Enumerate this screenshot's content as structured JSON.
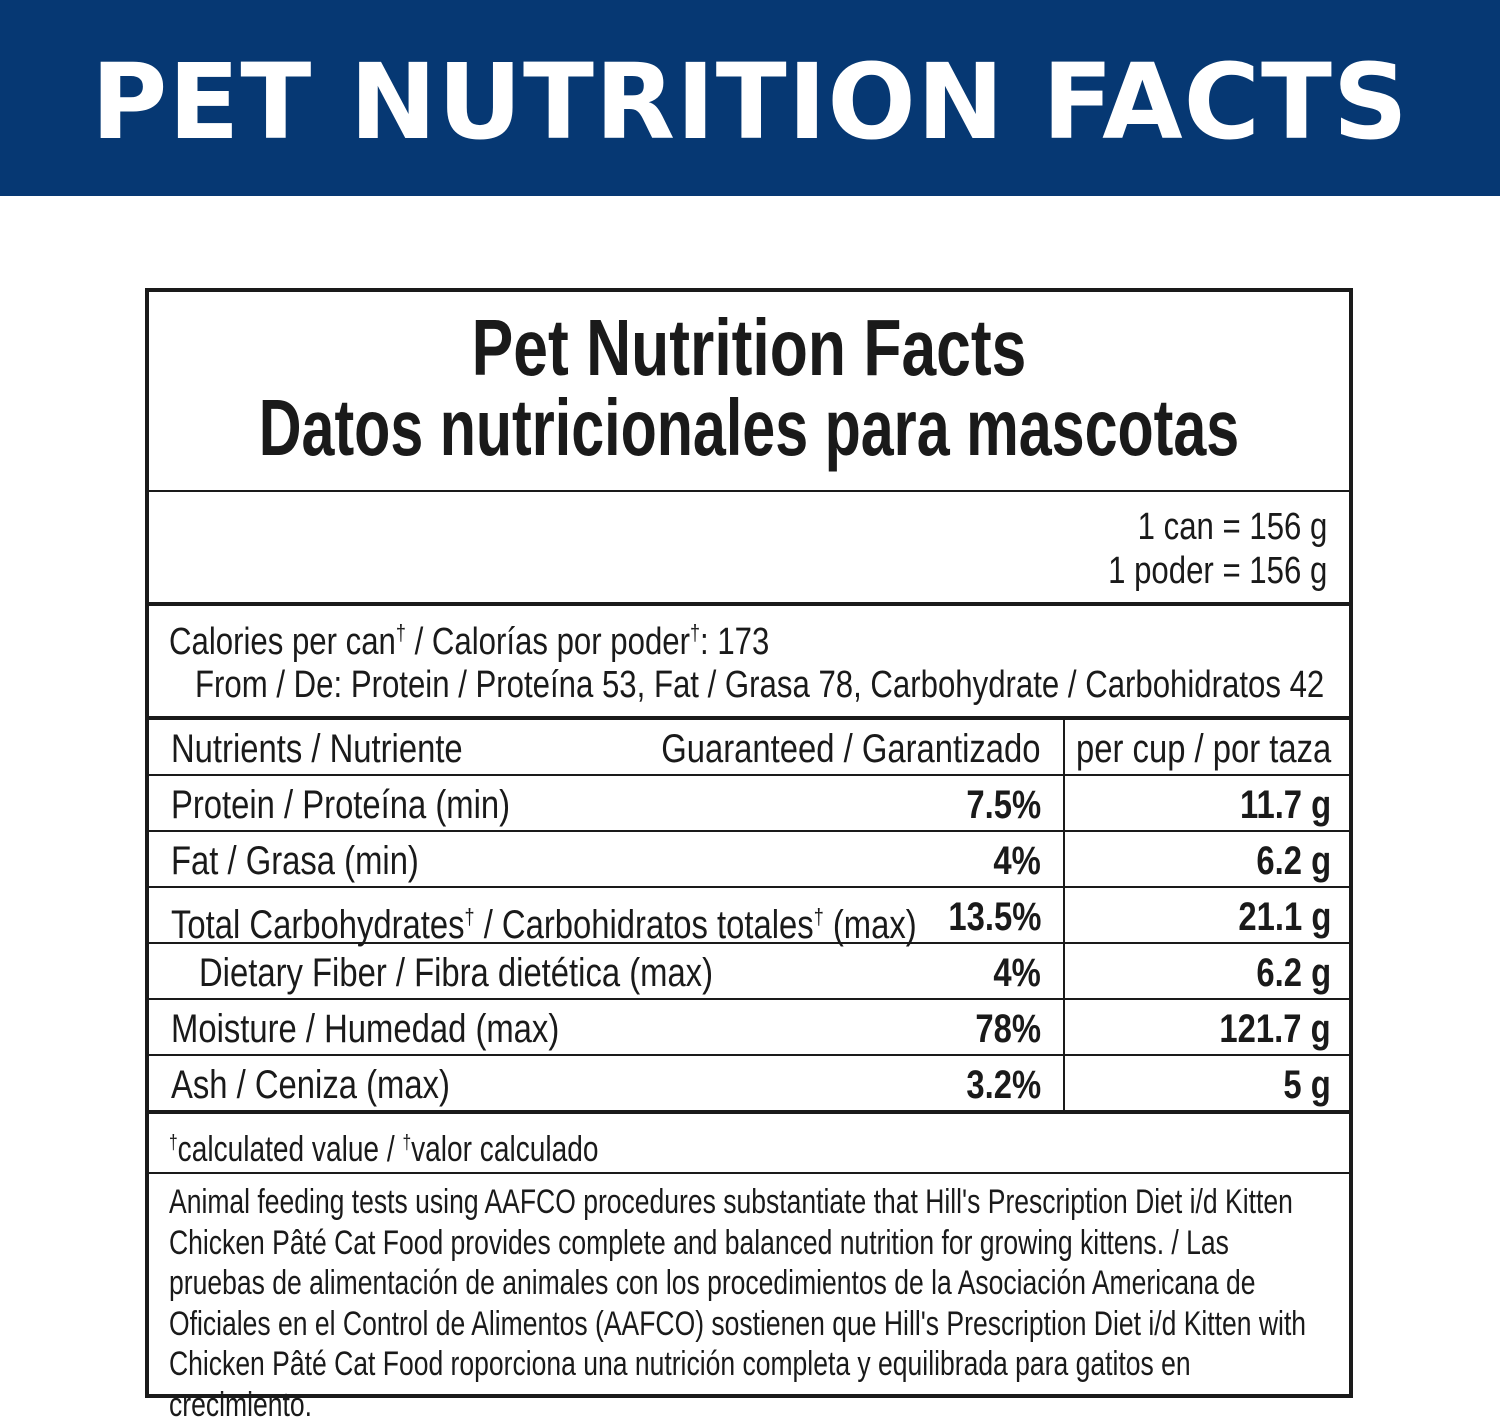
{
  "banner": {
    "title": "PET NUTRITION FACTS",
    "background_color": "#063873"
  },
  "panel": {
    "title_en": "Pet Nutrition Facts",
    "title_es": "Datos nutricionales para mascotas",
    "serving": {
      "line_en": "1 can = 156 g",
      "line_es": "1 poder = 156 g"
    },
    "calories": {
      "label_en": "Calories per can",
      "label_sep": " / Calorías por poder",
      "dagger": "†",
      "value_suffix": ": 173",
      "from_line": "From / De: Protein / Proteína 53, Fat / Grasa 78, Carbohydrate / Carbohidratos 42"
    },
    "table": {
      "headers": {
        "nutrient": "Nutrients / Nutriente",
        "guaranteed": "Guaranteed / Garantizado",
        "per_cup": "per cup / por taza"
      },
      "rows": [
        {
          "name": "Protein / Proteína (min)",
          "guaranteed": "7.5%",
          "per_cup": "11.7 g"
        },
        {
          "name": "Fat / Grasa (min)",
          "guaranteed": "4%",
          "per_cup": "6.2 g"
        },
        {
          "name_a": "Total Carbohydrates",
          "name_b": " / Carbohidratos totales",
          "name_c": " (max)",
          "guaranteed": "13.5%",
          "per_cup": "21.1 g"
        },
        {
          "name": "Dietary Fiber / Fibra dietética (max)",
          "guaranteed": "4%",
          "per_cup": "6.2 g"
        },
        {
          "name": "Moisture / Humedad (max)",
          "guaranteed": "78%",
          "per_cup": "121.7 g"
        },
        {
          "name": "Ash / Ceniza (max)",
          "guaranteed": "3.2%",
          "per_cup": "5 g"
        }
      ]
    },
    "footnote": {
      "dagger": "†",
      "text_en": "calculated value / ",
      "text_es": "valor calculado"
    },
    "statement": "Animal feeding tests using AAFCO procedures substantiate that Hill's Prescription Diet i/d Kitten Chicken Pâté Cat Food provides complete and balanced nutrition for growing kittens. / Las pruebas de alimentación de animales con los procedimientos de la Asociación Americana de Oficiales en el Control de Alimentos (AAFCO) sostienen que Hill's Prescription Diet i/d Kitten with Chicken Pâté Cat Food roporciona una nutrición completa y equilibrada para gatitos en crecimiento."
  }
}
